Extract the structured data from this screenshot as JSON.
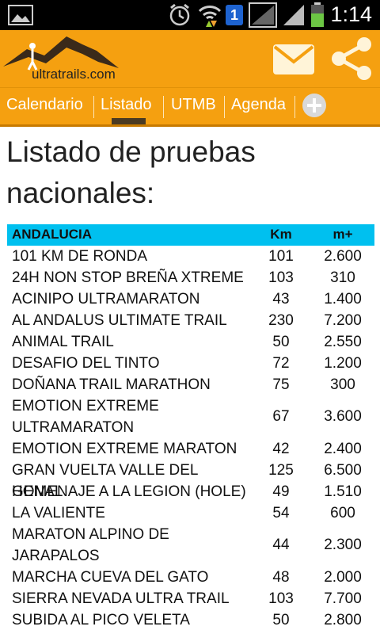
{
  "status_bar": {
    "time": "1:14",
    "notification_badge": "1",
    "icons": [
      "image-icon",
      "alarm-icon",
      "wifi-icon",
      "sim-icon",
      "signal-icon",
      "battery-icon"
    ]
  },
  "app_bar": {
    "logo_text": "ultratrails.com",
    "actions": [
      "mail-icon",
      "share-icon"
    ],
    "brand_color": "#f5a010"
  },
  "tabs": [
    {
      "label": "Calendario",
      "selected": false
    },
    {
      "label": "Listado",
      "selected": true
    },
    {
      "label": "UTMB",
      "selected": false
    },
    {
      "label": "Agenda",
      "selected": false
    }
  ],
  "page_title": "Listado de pruebas nacionales:",
  "table": {
    "region": "ANDALUCIA",
    "col_km": "Km",
    "col_elev": "m+",
    "header_color": "#00c0ef",
    "rows": [
      {
        "name": "101 KM DE RONDA",
        "km": "101",
        "elev": "2.600"
      },
      {
        "name": "24H NON STOP BREÑA XTREME",
        "km": "103",
        "elev": "310"
      },
      {
        "name": "ACINIPO ULTRAMARATON",
        "km": "43",
        "elev": "1.400"
      },
      {
        "name": "AL ANDALUS ULTIMATE TRAIL",
        "km": "230",
        "elev": "7.200"
      },
      {
        "name": "ANIMAL TRAIL",
        "km": "50",
        "elev": "2.550"
      },
      {
        "name": "DESAFIO DEL TINTO",
        "km": "72",
        "elev": "1.200"
      },
      {
        "name": "DOÑANA TRAIL MARATHON",
        "km": "75",
        "elev": "300"
      },
      {
        "name": "EMOTION EXTREME ULTRAMARATON",
        "km": "67",
        "elev": "3.600"
      },
      {
        "name": "EMOTION EXTREME MARATON",
        "km": "42",
        "elev": "2.400"
      },
      {
        "name": "GRAN VUELTA VALLE DEL GENAL",
        "km": "125",
        "elev": "6.500"
      },
      {
        "name": "HOMENAJE A LA LEGION (HOLE)",
        "km": "49",
        "elev": "1.510"
      },
      {
        "name": "LA VALIENTE",
        "km": "54",
        "elev": "600"
      },
      {
        "name": "MARATON ALPINO DE JARAPALOS",
        "km": "44",
        "elev": "2.300"
      },
      {
        "name": "MARCHA CUEVA DEL GATO",
        "km": "48",
        "elev": "2.000"
      },
      {
        "name": "SIERRA NEVADA ULTRA TRAIL",
        "km": "103",
        "elev": "7.700"
      },
      {
        "name": "SUBIDA AL PICO VELETA",
        "km": "50",
        "elev": "2.800"
      }
    ]
  }
}
